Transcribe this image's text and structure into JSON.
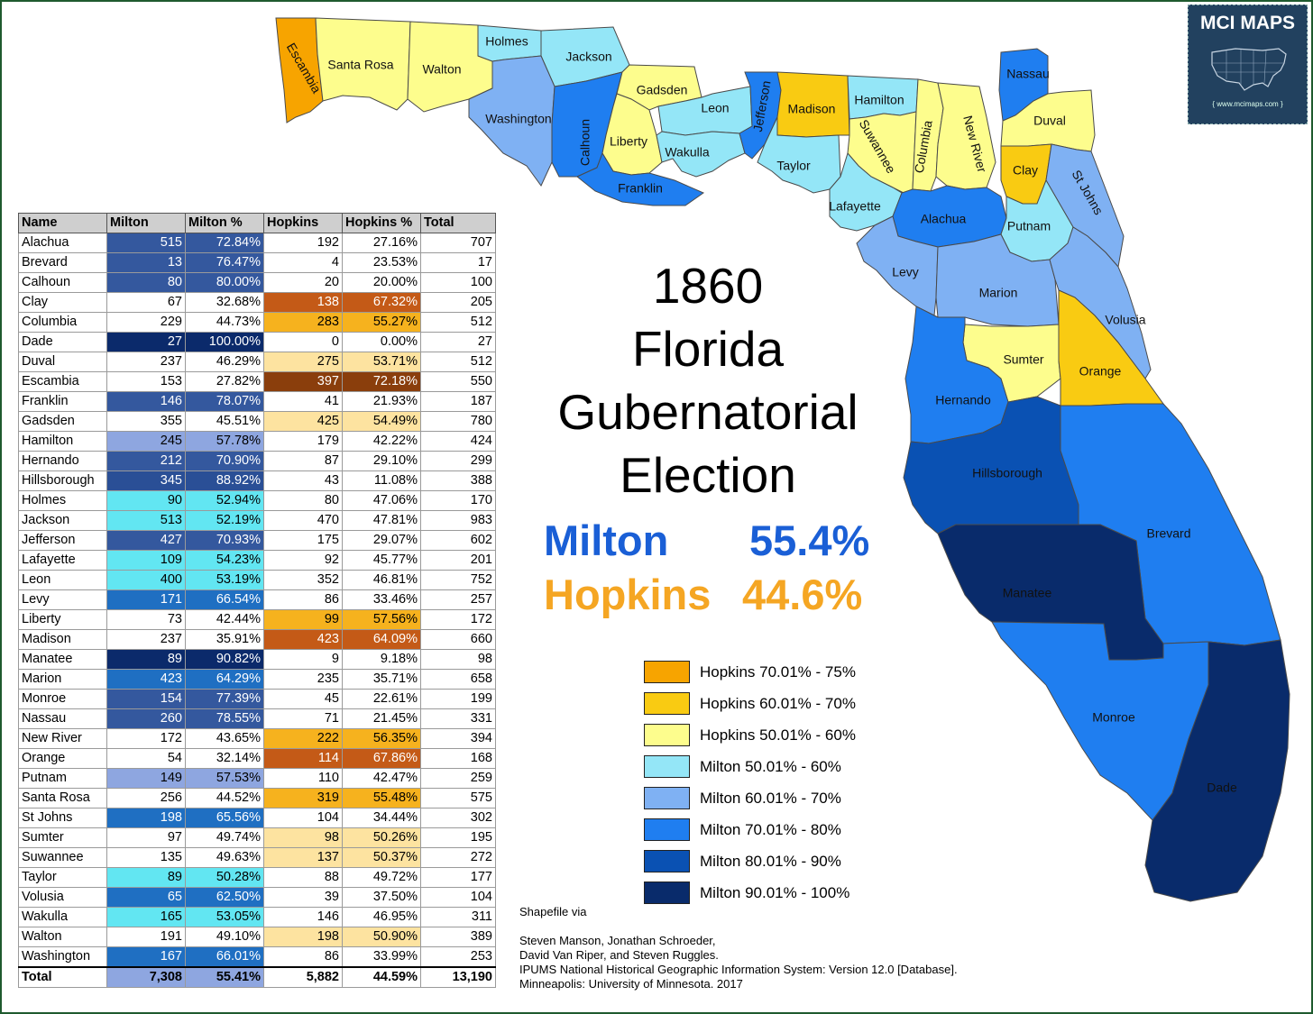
{
  "title_lines": [
    "1860",
    "Florida",
    "Gubernatorial",
    "Election"
  ],
  "results": {
    "milton": {
      "name": "Milton",
      "pct": "55.4%"
    },
    "hopkins": {
      "name": "Hopkins",
      "pct": "44.6%"
    }
  },
  "colors": {
    "hopkins_70_75": "#f7a400",
    "hopkins_60_70": "#f9cb12",
    "hopkins_50_60": "#fdfd8d",
    "milton_50_60": "#94e6f7",
    "milton_60_70": "#7fb1f3",
    "milton_70_80": "#1f7ef0",
    "milton_80_90": "#0a51b3",
    "milton_90_100": "#092b6b",
    "milton_text": "#1a5fd6",
    "hopkins_text": "#f5a623"
  },
  "legend": [
    {
      "label": "Hopkins 70.01% - 75%",
      "color": "#f7a400"
    },
    {
      "label": "Hopkins 60.01% - 70%",
      "color": "#f9cb12"
    },
    {
      "label": "Hopkins 50.01% - 60%",
      "color": "#fdfd8d"
    },
    {
      "label": "Milton 50.01% - 60%",
      "color": "#94e6f7"
    },
    {
      "label": "Milton 60.01% - 70%",
      "color": "#7fb1f3"
    },
    {
      "label": "Milton 70.01% - 80%",
      "color": "#1f7ef0"
    },
    {
      "label": "Milton 80.01% - 90%",
      "color": "#0a51b3"
    },
    {
      "label": "Milton 90.01% - 100%",
      "color": "#092b6b"
    }
  ],
  "logo": {
    "title": "MCI MAPS",
    "url": "{ www.mcimaps.com }",
    "icon": "us-map-icon"
  },
  "source_lines": [
    "Shapefile via",
    "",
    "Steven Manson, Jonathan Schroeder,",
    "David Van Riper, and Steven Ruggles.",
    " IPUMS National Historical Geographic Information System: Version 12.0 [Database].",
    "Minneapolis: University of Minnesota. 2017"
  ],
  "table": {
    "headers": [
      "Name",
      "Milton",
      "Milton %",
      "Hopkins",
      "Hopkins %",
      "Total"
    ],
    "rows": [
      [
        "Alachua",
        "515",
        "72.84%",
        "192",
        "27.16%",
        "707"
      ],
      [
        "Brevard",
        "13",
        "76.47%",
        "4",
        "23.53%",
        "17"
      ],
      [
        "Calhoun",
        "80",
        "80.00%",
        "20",
        "20.00%",
        "100"
      ],
      [
        "Clay",
        "67",
        "32.68%",
        "138",
        "67.32%",
        "205"
      ],
      [
        "Columbia",
        "229",
        "44.73%",
        "283",
        "55.27%",
        "512"
      ],
      [
        "Dade",
        "27",
        "100.00%",
        "0",
        "0.00%",
        "27"
      ],
      [
        "Duval",
        "237",
        "46.29%",
        "275",
        "53.71%",
        "512"
      ],
      [
        "Escambia",
        "153",
        "27.82%",
        "397",
        "72.18%",
        "550"
      ],
      [
        "Franklin",
        "146",
        "78.07%",
        "41",
        "21.93%",
        "187"
      ],
      [
        "Gadsden",
        "355",
        "45.51%",
        "425",
        "54.49%",
        "780"
      ],
      [
        "Hamilton",
        "245",
        "57.78%",
        "179",
        "42.22%",
        "424"
      ],
      [
        "Hernando",
        "212",
        "70.90%",
        "87",
        "29.10%",
        "299"
      ],
      [
        "Hillsborough",
        "345",
        "88.92%",
        "43",
        "11.08%",
        "388"
      ],
      [
        "Holmes",
        "90",
        "52.94%",
        "80",
        "47.06%",
        "170"
      ],
      [
        "Jackson",
        "513",
        "52.19%",
        "470",
        "47.81%",
        "983"
      ],
      [
        "Jefferson",
        "427",
        "70.93%",
        "175",
        "29.07%",
        "602"
      ],
      [
        "Lafayette",
        "109",
        "54.23%",
        "92",
        "45.77%",
        "201"
      ],
      [
        "Leon",
        "400",
        "53.19%",
        "352",
        "46.81%",
        "752"
      ],
      [
        "Levy",
        "171",
        "66.54%",
        "86",
        "33.46%",
        "257"
      ],
      [
        "Liberty",
        "73",
        "42.44%",
        "99",
        "57.56%",
        "172"
      ],
      [
        "Madison",
        "237",
        "35.91%",
        "423",
        "64.09%",
        "660"
      ],
      [
        "Manatee",
        "89",
        "90.82%",
        "9",
        "9.18%",
        "98"
      ],
      [
        "Marion",
        "423",
        "64.29%",
        "235",
        "35.71%",
        "658"
      ],
      [
        "Monroe",
        "154",
        "77.39%",
        "45",
        "22.61%",
        "199"
      ],
      [
        "Nassau",
        "260",
        "78.55%",
        "71",
        "21.45%",
        "331"
      ],
      [
        "New River",
        "172",
        "43.65%",
        "222",
        "56.35%",
        "394"
      ],
      [
        "Orange",
        "54",
        "32.14%",
        "114",
        "67.86%",
        "168"
      ],
      [
        "Putnam",
        "149",
        "57.53%",
        "110",
        "42.47%",
        "259"
      ],
      [
        "Santa Rosa",
        "256",
        "44.52%",
        "319",
        "55.48%",
        "575"
      ],
      [
        "St Johns",
        "198",
        "65.56%",
        "104",
        "34.44%",
        "302"
      ],
      [
        "Sumter",
        "97",
        "49.74%",
        "98",
        "50.26%",
        "195"
      ],
      [
        "Suwannee",
        "135",
        "49.63%",
        "137",
        "50.37%",
        "272"
      ],
      [
        "Taylor",
        "89",
        "50.28%",
        "88",
        "49.72%",
        "177"
      ],
      [
        "Volusia",
        "65",
        "62.50%",
        "39",
        "37.50%",
        "104"
      ],
      [
        "Wakulla",
        "165",
        "53.05%",
        "146",
        "46.95%",
        "311"
      ],
      [
        "Walton",
        "191",
        "49.10%",
        "198",
        "50.90%",
        "389"
      ],
      [
        "Washington",
        "167",
        "66.01%",
        "86",
        "33.99%",
        "253"
      ]
    ],
    "total": [
      "Total",
      "7,308",
      "55.41%",
      "5,882",
      "44.59%",
      "13,190"
    ]
  },
  "counties": [
    {
      "name": "Escambia",
      "color": "#f7a400"
    },
    {
      "name": "Santa Rosa",
      "color": "#fdfd8d"
    },
    {
      "name": "Walton",
      "color": "#fdfd8d"
    },
    {
      "name": "Holmes",
      "color": "#94e6f7"
    },
    {
      "name": "Jackson",
      "color": "#94e6f7"
    },
    {
      "name": "Washington",
      "color": "#7fb1f3"
    },
    {
      "name": "Calhoun",
      "color": "#1f7ef0"
    },
    {
      "name": "Gadsden",
      "color": "#fdfd8d"
    },
    {
      "name": "Liberty",
      "color": "#fdfd8d"
    },
    {
      "name": "Franklin",
      "color": "#1f7ef0"
    },
    {
      "name": "Leon",
      "color": "#94e6f7"
    },
    {
      "name": "Wakulla",
      "color": "#94e6f7"
    },
    {
      "name": "Jefferson",
      "color": "#1f7ef0"
    },
    {
      "name": "Madison",
      "color": "#f9cb12"
    },
    {
      "name": "Taylor",
      "color": "#94e6f7"
    },
    {
      "name": "Hamilton",
      "color": "#94e6f7"
    },
    {
      "name": "Suwannee",
      "color": "#fdfd8d"
    },
    {
      "name": "Columbia",
      "color": "#fdfd8d"
    },
    {
      "name": "New River",
      "color": "#fdfd8d"
    },
    {
      "name": "Lafayette",
      "color": "#94e6f7"
    },
    {
      "name": "Nassau",
      "color": "#1f7ef0"
    },
    {
      "name": "Duval",
      "color": "#fdfd8d"
    },
    {
      "name": "Clay",
      "color": "#f9cb12"
    },
    {
      "name": "St Johns",
      "color": "#7fb1f3"
    },
    {
      "name": "Alachua",
      "color": "#1f7ef0"
    },
    {
      "name": "Putnam",
      "color": "#94e6f7"
    },
    {
      "name": "Levy",
      "color": "#7fb1f3"
    },
    {
      "name": "Marion",
      "color": "#7fb1f3"
    },
    {
      "name": "Volusia",
      "color": "#7fb1f3"
    },
    {
      "name": "Sumter",
      "color": "#fdfd8d"
    },
    {
      "name": "Orange",
      "color": "#f9cb12"
    },
    {
      "name": "Hernando",
      "color": "#1f7ef0"
    },
    {
      "name": "Hillsborough",
      "color": "#0a51b3"
    },
    {
      "name": "Brevard",
      "color": "#1f7ef0"
    },
    {
      "name": "Manatee",
      "color": "#092b6b"
    },
    {
      "name": "Monroe",
      "color": "#1f7ef0"
    },
    {
      "name": "Dade",
      "color": "#092b6b"
    }
  ]
}
